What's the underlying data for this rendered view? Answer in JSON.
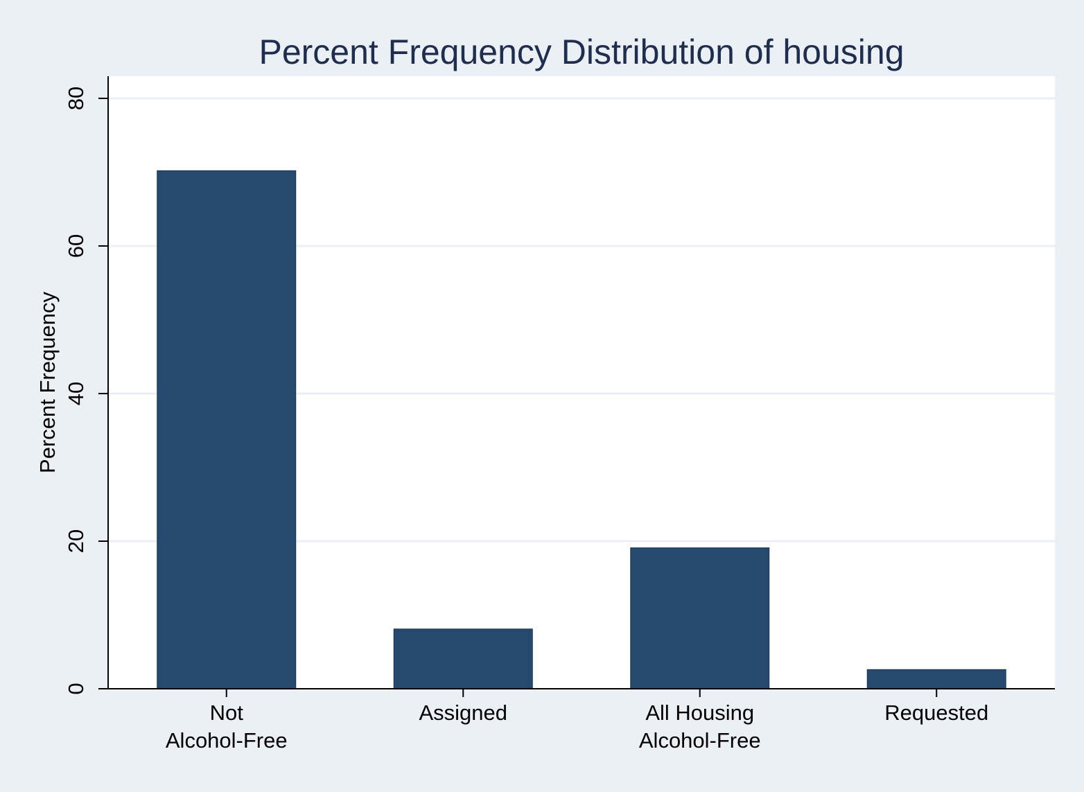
{
  "colors": {
    "background": "#eaf0f4",
    "plot_area": "#ffffff",
    "bar": "#264a6e",
    "grid": "#eaf0f4",
    "title": "#1f2d4e",
    "axis": "#000000"
  },
  "chart_data": {
    "type": "bar",
    "title": "Percent Frequency Distribution of housing",
    "xlabel": "",
    "ylabel": "Percent Frequency",
    "categories": [
      [
        "Not",
        "Alcohol-Free"
      ],
      [
        "Assigned"
      ],
      [
        "All Housing",
        "Alcohol-Free"
      ],
      [
        "Requested"
      ]
    ],
    "values": [
      70.2,
      8.1,
      19.1,
      2.6
    ],
    "ylim": [
      0,
      83
    ],
    "yticks": [
      "0",
      "20",
      "40",
      "60",
      "80"
    ],
    "grid": true,
    "legend": "none"
  }
}
